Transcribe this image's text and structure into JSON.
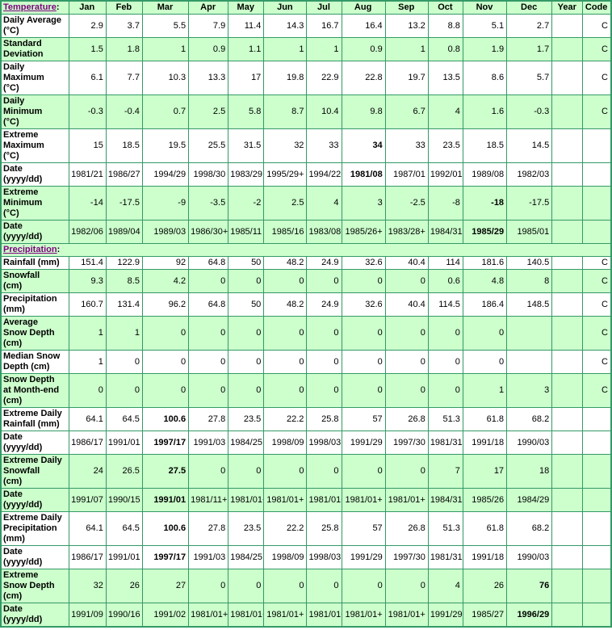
{
  "palette": {
    "green_bg": "#ccffcc",
    "border_green": "#339966",
    "label_blue": "#0000cc",
    "link_purple": "#800080",
    "text_black": "#000000"
  },
  "columns": [
    "Jan",
    "Feb",
    "Mar",
    "Apr",
    "May",
    "Jun",
    "Jul",
    "Aug",
    "Sep",
    "Oct",
    "Nov",
    "Dec",
    "Year",
    "Code"
  ],
  "temperature": {
    "link_label": "Temperature",
    "colon": ":",
    "rows": [
      {
        "label": "Daily Average\n(°C)",
        "shade": "white",
        "bold": [],
        "cells": [
          "2.9",
          "3.7",
          "5.5",
          "7.9",
          "11.4",
          "14.3",
          "16.7",
          "16.4",
          "13.2",
          "8.8",
          "5.1",
          "2.7",
          "",
          "C"
        ]
      },
      {
        "label": "Standard\nDeviation",
        "shade": "green",
        "bold": [],
        "cells": [
          "1.5",
          "1.8",
          "1",
          "0.9",
          "1.1",
          "1",
          "1",
          "0.9",
          "1",
          "0.8",
          "1.9",
          "1.7",
          "",
          "C"
        ]
      },
      {
        "label": "Daily\nMaximum\n(°C)",
        "shade": "white",
        "bold": [],
        "cells": [
          "6.1",
          "7.7",
          "10.3",
          "13.3",
          "17",
          "19.8",
          "22.9",
          "22.8",
          "19.7",
          "13.5",
          "8.6",
          "5.7",
          "",
          "C"
        ]
      },
      {
        "label": "Daily\nMinimum\n(°C)",
        "shade": "green",
        "bold": [],
        "cells": [
          "-0.3",
          "-0.4",
          "0.7",
          "2.5",
          "5.8",
          "8.7",
          "10.4",
          "9.8",
          "6.7",
          "4",
          "1.6",
          "-0.3",
          "",
          "C"
        ]
      },
      {
        "label": "Extreme\nMaximum\n(°C)",
        "shade": "white",
        "bold": [
          7
        ],
        "cells": [
          "15",
          "18.5",
          "19.5",
          "25.5",
          "31.5",
          "32",
          "33",
          "34",
          "33",
          "23.5",
          "18.5",
          "14.5",
          "",
          ""
        ]
      },
      {
        "label": "Date\n(yyyy/dd)",
        "shade": "white",
        "bold": [
          7
        ],
        "cells": [
          "1981/21",
          "1986/27",
          "1994/29",
          "1998/30",
          "1983/29",
          "1995/29+",
          "1994/22+",
          "1981/08",
          "1987/01",
          "1992/01",
          "1989/08",
          "1982/03",
          "",
          ""
        ]
      },
      {
        "label": "Extreme\nMinimum\n(°C)",
        "shade": "green",
        "bold": [
          10
        ],
        "cells": [
          "-14",
          "-17.5",
          "-9",
          "-3.5",
          "-2",
          "2.5",
          "4",
          "3",
          "-2.5",
          "-8",
          "-18",
          "-17.5",
          "",
          ""
        ]
      },
      {
        "label": "Date\n(yyyy/dd)",
        "shade": "green",
        "bold": [
          10
        ],
        "cells": [
          "1982/06",
          "1989/04",
          "1989/03",
          "1986/30+",
          "1985/11",
          "1985/16",
          "1983/08+",
          "1985/26+",
          "1983/28+",
          "1984/31",
          "1985/29",
          "1985/01",
          "",
          ""
        ]
      }
    ]
  },
  "precipitation": {
    "link_label": "Precipitation",
    "colon": ":",
    "rows": [
      {
        "label": "Rainfall (mm)",
        "shade": "white",
        "bold": [],
        "cells": [
          "151.4",
          "122.9",
          "92",
          "64.8",
          "50",
          "48.2",
          "24.9",
          "32.6",
          "40.4",
          "114",
          "181.6",
          "140.5",
          "",
          "C"
        ]
      },
      {
        "label": "Snowfall\n(cm)",
        "shade": "green",
        "bold": [],
        "cells": [
          "9.3",
          "8.5",
          "4.2",
          "0",
          "0",
          "0",
          "0",
          "0",
          "0",
          "0.6",
          "4.8",
          "8",
          "",
          "C"
        ]
      },
      {
        "label": "Precipitation\n(mm)",
        "shade": "white",
        "bold": [],
        "cells": [
          "160.7",
          "131.4",
          "96.2",
          "64.8",
          "50",
          "48.2",
          "24.9",
          "32.6",
          "40.4",
          "114.5",
          "186.4",
          "148.5",
          "",
          "C"
        ]
      },
      {
        "label": "Average\nSnow Depth\n(cm)",
        "shade": "green",
        "bold": [],
        "cells": [
          "1",
          "1",
          "0",
          "0",
          "0",
          "0",
          "0",
          "0",
          "0",
          "0",
          "0",
          "",
          "",
          "C"
        ]
      },
      {
        "label": "Median Snow\nDepth (cm)",
        "shade": "white",
        "bold": [],
        "cells": [
          "1",
          "0",
          "0",
          "0",
          "0",
          "0",
          "0",
          "0",
          "0",
          "0",
          "0",
          "",
          "",
          "C"
        ]
      },
      {
        "label": "Snow Depth\nat Month-end\n(cm)",
        "shade": "green",
        "bold": [],
        "cells": [
          "0",
          "0",
          "0",
          "0",
          "0",
          "0",
          "0",
          "0",
          "0",
          "0",
          "1",
          "3",
          "",
          "C"
        ]
      },
      {
        "label": "Extreme Daily\nRainfall (mm)",
        "shade": "white",
        "bold": [
          2
        ],
        "cells": [
          "64.1",
          "64.5",
          "100.6",
          "27.8",
          "23.5",
          "22.2",
          "25.8",
          "57",
          "26.8",
          "51.3",
          "61.8",
          "68.2",
          "",
          ""
        ]
      },
      {
        "label": "Date\n(yyyy/dd)",
        "shade": "white",
        "bold": [
          2
        ],
        "cells": [
          "1986/17",
          "1991/01",
          "1997/17",
          "1991/03",
          "1984/25",
          "1998/09",
          "1998/03",
          "1991/29",
          "1997/30",
          "1981/31",
          "1991/18",
          "1990/03",
          "",
          ""
        ]
      },
      {
        "label": "Extreme Daily\nSnowfall\n(cm)",
        "shade": "green",
        "bold": [
          2
        ],
        "cells": [
          "24",
          "26.5",
          "27.5",
          "0",
          "0",
          "0",
          "0",
          "0",
          "0",
          "7",
          "17",
          "18",
          "",
          ""
        ]
      },
      {
        "label": "Date\n(yyyy/dd)",
        "shade": "green",
        "bold": [
          2
        ],
        "cells": [
          "1991/07",
          "1990/15",
          "1991/01",
          "1981/11+",
          "1981/01+",
          "1981/01+",
          "1981/01+",
          "1981/01+",
          "1981/01+",
          "1984/31",
          "1985/26",
          "1984/29",
          "",
          ""
        ]
      },
      {
        "label": "Extreme Daily\nPrecipitation\n(mm)",
        "shade": "white",
        "bold": [
          2
        ],
        "cells": [
          "64.1",
          "64.5",
          "100.6",
          "27.8",
          "23.5",
          "22.2",
          "25.8",
          "57",
          "26.8",
          "51.3",
          "61.8",
          "68.2",
          "",
          ""
        ]
      },
      {
        "label": "Date\n(yyyy/dd)",
        "shade": "white",
        "bold": [
          2
        ],
        "cells": [
          "1986/17",
          "1991/01",
          "1997/17",
          "1991/03",
          "1984/25",
          "1998/09",
          "1998/03",
          "1991/29",
          "1997/30",
          "1981/31",
          "1991/18",
          "1990/03",
          "",
          ""
        ]
      },
      {
        "label": "Extreme\nSnow Depth\n(cm)",
        "shade": "green",
        "bold": [
          11
        ],
        "cells": [
          "32",
          "26",
          "27",
          "0",
          "0",
          "0",
          "0",
          "0",
          "0",
          "4",
          "26",
          "76",
          "",
          ""
        ]
      },
      {
        "label": "Date\n(yyyy/dd)",
        "shade": "green",
        "bold": [
          11
        ],
        "cells": [
          "1991/09",
          "1990/16",
          "1991/02",
          "1981/01+",
          "1981/01+",
          "1981/01+",
          "1981/01+",
          "1981/01+",
          "1981/01+",
          "1991/29",
          "1985/27",
          "1996/29",
          "",
          ""
        ]
      }
    ]
  }
}
